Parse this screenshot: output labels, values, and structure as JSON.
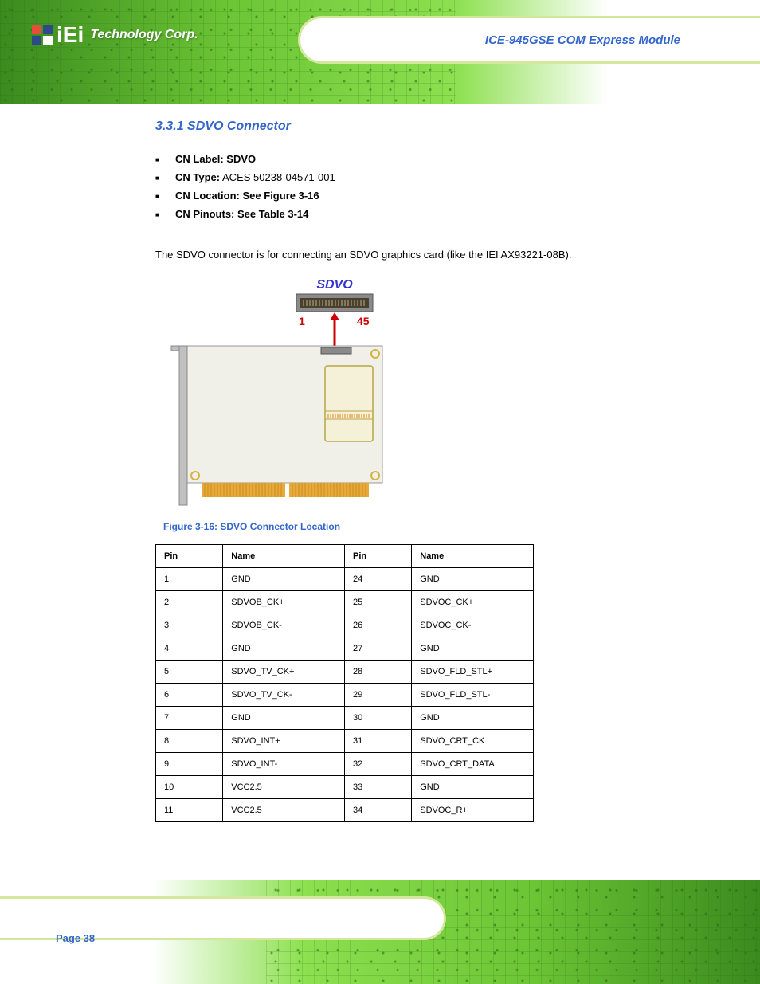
{
  "header": {
    "logo_text": "iEi",
    "logo_reg": "®",
    "logo_subtitle": "Technology Corp.",
    "product_name": "ICE-945GSE COM Express Module"
  },
  "section": {
    "number": "3.3.1",
    "title": "SDVO Connector",
    "cn_label_label": "CN Label:",
    "cn_label_value": "SDVO",
    "cn_type_label": "CN Type:",
    "cn_type_value": "ACES 50238-04571-001",
    "cn_location_label": "CN Location:",
    "cn_location_value": "See Figure 3-16",
    "cn_pinouts_label": "CN Pinouts:",
    "cn_pinouts_value": "See Table 3-14",
    "description": "The SDVO connector is for connecting an SDVO graphics card (like the IEI AX93221-08B)."
  },
  "figure": {
    "label": "SDVO",
    "pin_1": "1",
    "pin_45": "45",
    "caption": "Figure 3-16: SDVO Connector Location",
    "colors": {
      "label_color": "#3333cc",
      "pin_color": "#cc0000",
      "board_body": "#f0f0e8",
      "bracket": "#999999",
      "gold_fingers": "#e8a93a",
      "connector_outer": "#8a8a8a",
      "connector_inner": "#4a4030",
      "card_slot_outline": "#b5a642",
      "card_slot_fill": "#f5f0d8",
      "card_slot_pins": "#e8963a",
      "arrow_color": "#cc0000",
      "screw_hole": "#d4b340"
    }
  },
  "table": {
    "headers": [
      "Pin",
      "Name",
      "Pin",
      "Name"
    ],
    "rows": [
      [
        "1",
        "GND",
        "24",
        "GND"
      ],
      [
        "2",
        "SDVOB_CK+",
        "25",
        "SDVOC_CK+"
      ],
      [
        "3",
        "SDVOB_CK-",
        "26",
        "SDVOC_CK-"
      ],
      [
        "4",
        "GND",
        "27",
        "GND"
      ],
      [
        "5",
        "SDVO_TV_CK+",
        "28",
        "SDVO_FLD_STL+"
      ],
      [
        "6",
        "SDVO_TV_CK-",
        "29",
        "SDVO_FLD_STL-"
      ],
      [
        "7",
        "GND",
        "30",
        "GND"
      ],
      [
        "8",
        "SDVO_INT+",
        "31",
        "SDVO_CRT_CK"
      ],
      [
        "9",
        "SDVO_INT-",
        "32",
        "SDVO_CRT_DATA"
      ],
      [
        "10",
        "VCC2.5",
        "33",
        "GND"
      ],
      [
        "11",
        "VCC2.5",
        "34",
        "SDVOC_R+"
      ]
    ]
  },
  "footer": {
    "page_number": "Page 38"
  }
}
